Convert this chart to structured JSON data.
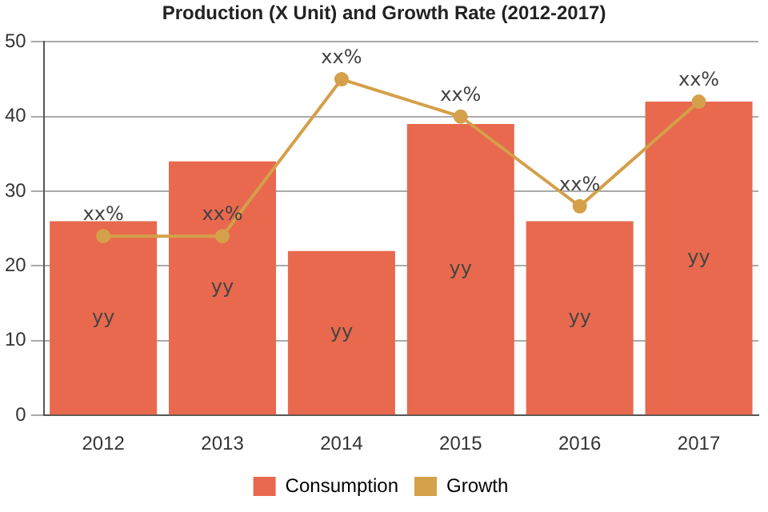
{
  "chart_data": {
    "type": "bar",
    "title": "Production (X Unit) and Growth Rate (2012-2017)",
    "categories": [
      "2012",
      "2013",
      "2014",
      "2015",
      "2016",
      "2017"
    ],
    "series": [
      {
        "name": "Consumption",
        "color": "#e8694e",
        "values": [
          26,
          34,
          22,
          39,
          26,
          42
        ],
        "value_labels": [
          "yy",
          "yy",
          "yy",
          "yy",
          "yy",
          "yy"
        ]
      },
      {
        "name": "Growth",
        "type": "line",
        "color": "#d4a04a",
        "values": [
          24,
          24,
          45,
          40,
          28,
          42
        ],
        "value_labels": [
          "xx%",
          "xx%",
          "xx%",
          "xx%",
          "xx%",
          "xx%"
        ]
      }
    ],
    "ylim": [
      0,
      50
    ],
    "yticks": [
      0,
      10,
      20,
      30,
      40,
      50
    ],
    "grid": "y",
    "legend": "bottom",
    "marker": "circle",
    "line_style": "solid"
  }
}
